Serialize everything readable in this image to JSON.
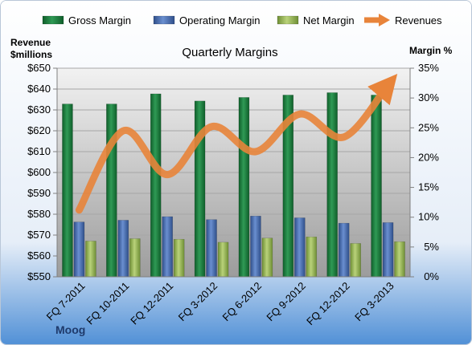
{
  "chart_data": {
    "type": "bar",
    "title": "Quarterly Margins",
    "left_axis_label_line1": "Revenue",
    "left_axis_label_line2": "$millions",
    "right_axis_label": "Margin %",
    "source_label": "Moog",
    "categories": [
      "FQ 7-2011",
      "FQ 10-2011",
      "FQ 12-2011",
      "FQ 3-2012",
      "FQ 6-2012",
      "FQ 9-2012",
      "FQ 12-2012",
      "FQ 3-2013"
    ],
    "left_axis": {
      "min": 550,
      "max": 650,
      "step": 10,
      "tick_labels": [
        "$550",
        "$560",
        "$570",
        "$580",
        "$590",
        "$600",
        "$610",
        "$620",
        "$630",
        "$640",
        "$650"
      ]
    },
    "right_axis": {
      "min": 0,
      "max": 35,
      "step": 5,
      "tick_labels": [
        "0%",
        "5%",
        "10%",
        "15%",
        "20%",
        "25%",
        "30%",
        "35%"
      ]
    },
    "series": [
      {
        "name": "Gross Margin",
        "axis": "right",
        "kind": "bar",
        "color": "#1f7a3e",
        "values": [
          29.0,
          29.0,
          30.7,
          29.5,
          30.1,
          30.5,
          30.9,
          30.5
        ]
      },
      {
        "name": "Operating Margin",
        "axis": "right",
        "kind": "bar",
        "color": "#4a6fb0",
        "values": [
          9.2,
          9.5,
          10.1,
          9.6,
          10.2,
          9.9,
          9.0,
          9.1
        ]
      },
      {
        "name": "Net Margin",
        "axis": "right",
        "kind": "bar",
        "color": "#9bbb59",
        "values": [
          6.0,
          6.4,
          6.3,
          5.8,
          6.5,
          6.7,
          5.6,
          5.9
        ]
      },
      {
        "name": "Revenues",
        "axis": "left",
        "kind": "line",
        "color": "#e8843a",
        "values": [
          582,
          620,
          599,
          622,
          610,
          628,
          617,
          642
        ]
      }
    ],
    "legend_position": "top",
    "grid": true
  }
}
